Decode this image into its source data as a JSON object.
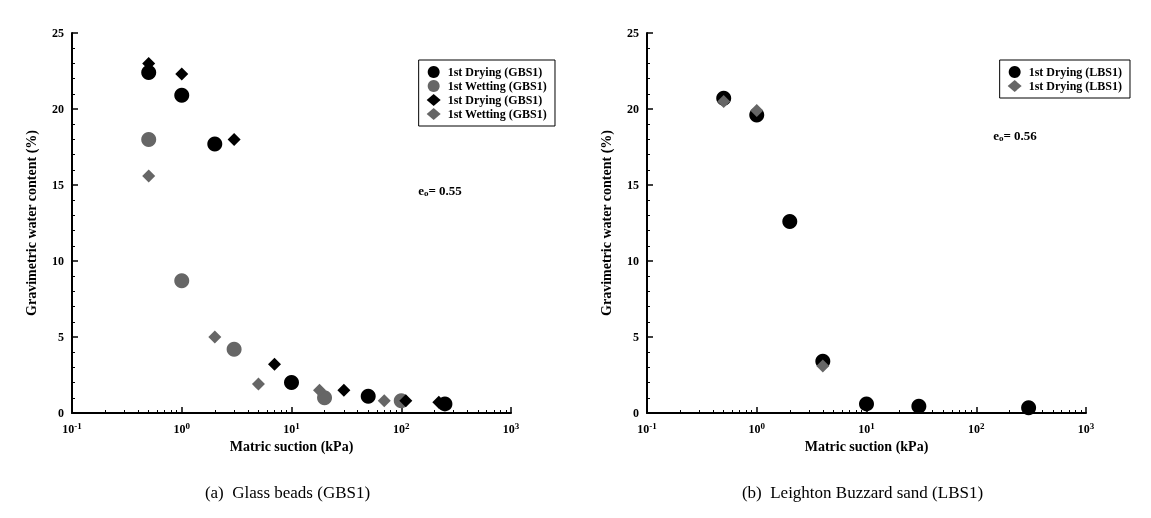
{
  "chart_data": [
    {
      "type": "scatter",
      "title": "(a)  Glass beads (GBS1)",
      "xlabel": "Matric suction (kPa)",
      "ylabel": "Gravimetric water content (%)",
      "log": "x",
      "xlim": [
        0.1,
        1000
      ],
      "xticks": [
        {
          "value": 0.1,
          "label": "10$^{-1}$"
        },
        {
          "value": 1,
          "label": "10$^{0}$"
        },
        {
          "value": 10,
          "label": "10$^{1}$"
        },
        {
          "value": 100,
          "label": "10$^{2}$"
        },
        {
          "value": 1000,
          "label": "10$^{3}$"
        }
      ],
      "ylim": [
        0,
        25
      ],
      "yticks": [
        0,
        5,
        10,
        15,
        20,
        25
      ],
      "grid": false,
      "legend": "top right",
      "annotations": [
        "e$_{o}$= 0.55"
      ],
      "series": [
        {
          "name": "1st Drying (GBS1)",
          "color": "#000000",
          "marker": "circle",
          "x": [
            0.5,
            1,
            2,
            10,
            50,
            250
          ],
          "values": [
            22.4,
            20.9,
            17.7,
            2.0,
            1.1,
            0.6
          ]
        },
        {
          "name": "1st Wetting (GBS1)",
          "color": "#666666",
          "marker": "circle",
          "x": [
            0.5,
            1,
            3,
            20,
            100
          ],
          "values": [
            18.0,
            8.7,
            4.2,
            1.0,
            0.8
          ]
        },
        {
          "name": "1st Drying (GBS1)",
          "color": "#000000",
          "marker": "diamond",
          "x": [
            0.5,
            1,
            3,
            7,
            30,
            110,
            220
          ],
          "values": [
            23.0,
            22.3,
            18.0,
            3.2,
            1.5,
            0.8,
            0.7
          ]
        },
        {
          "name": "1st Wetting (GBS1)",
          "color": "#666666",
          "marker": "diamond",
          "x": [
            0.5,
            2,
            5,
            18,
            70
          ],
          "values": [
            15.6,
            5.0,
            1.9,
            1.5,
            0.8
          ]
        }
      ]
    },
    {
      "type": "scatter",
      "title": "(b)  Leighton Buzzard sand (LBS1)",
      "xlabel": "Matric suction (kPa)",
      "ylabel": "Gravimetric water content (%)",
      "log": "x",
      "xlim": [
        0.1,
        1000
      ],
      "xticks": [
        {
          "value": 0.1,
          "label": "10$^{-1}$"
        },
        {
          "value": 1,
          "label": "10$^{0}$"
        },
        {
          "value": 10,
          "label": "10$^{1}$"
        },
        {
          "value": 100,
          "label": "10$^{2}$"
        },
        {
          "value": 1000,
          "label": "10$^{3}$"
        }
      ],
      "ylim": [
        0,
        25
      ],
      "yticks": [
        0,
        5,
        10,
        15,
        20,
        25
      ],
      "grid": false,
      "legend": "top right",
      "annotations": [
        "e$_{o}$= 0.56"
      ],
      "series": [
        {
          "name": "1st Drying (LBS1)",
          "color": "#000000",
          "marker": "circle",
          "x": [
            0.5,
            1,
            2,
            4,
            10,
            30,
            300
          ],
          "values": [
            20.7,
            19.6,
            12.6,
            3.4,
            0.6,
            0.45,
            0.35
          ]
        },
        {
          "name": "1st Drying (LBS1)",
          "color": "#666666",
          "marker": "diamond",
          "x": [
            0.5,
            1,
            4
          ],
          "values": [
            20.5,
            19.9,
            3.1
          ]
        }
      ]
    }
  ]
}
